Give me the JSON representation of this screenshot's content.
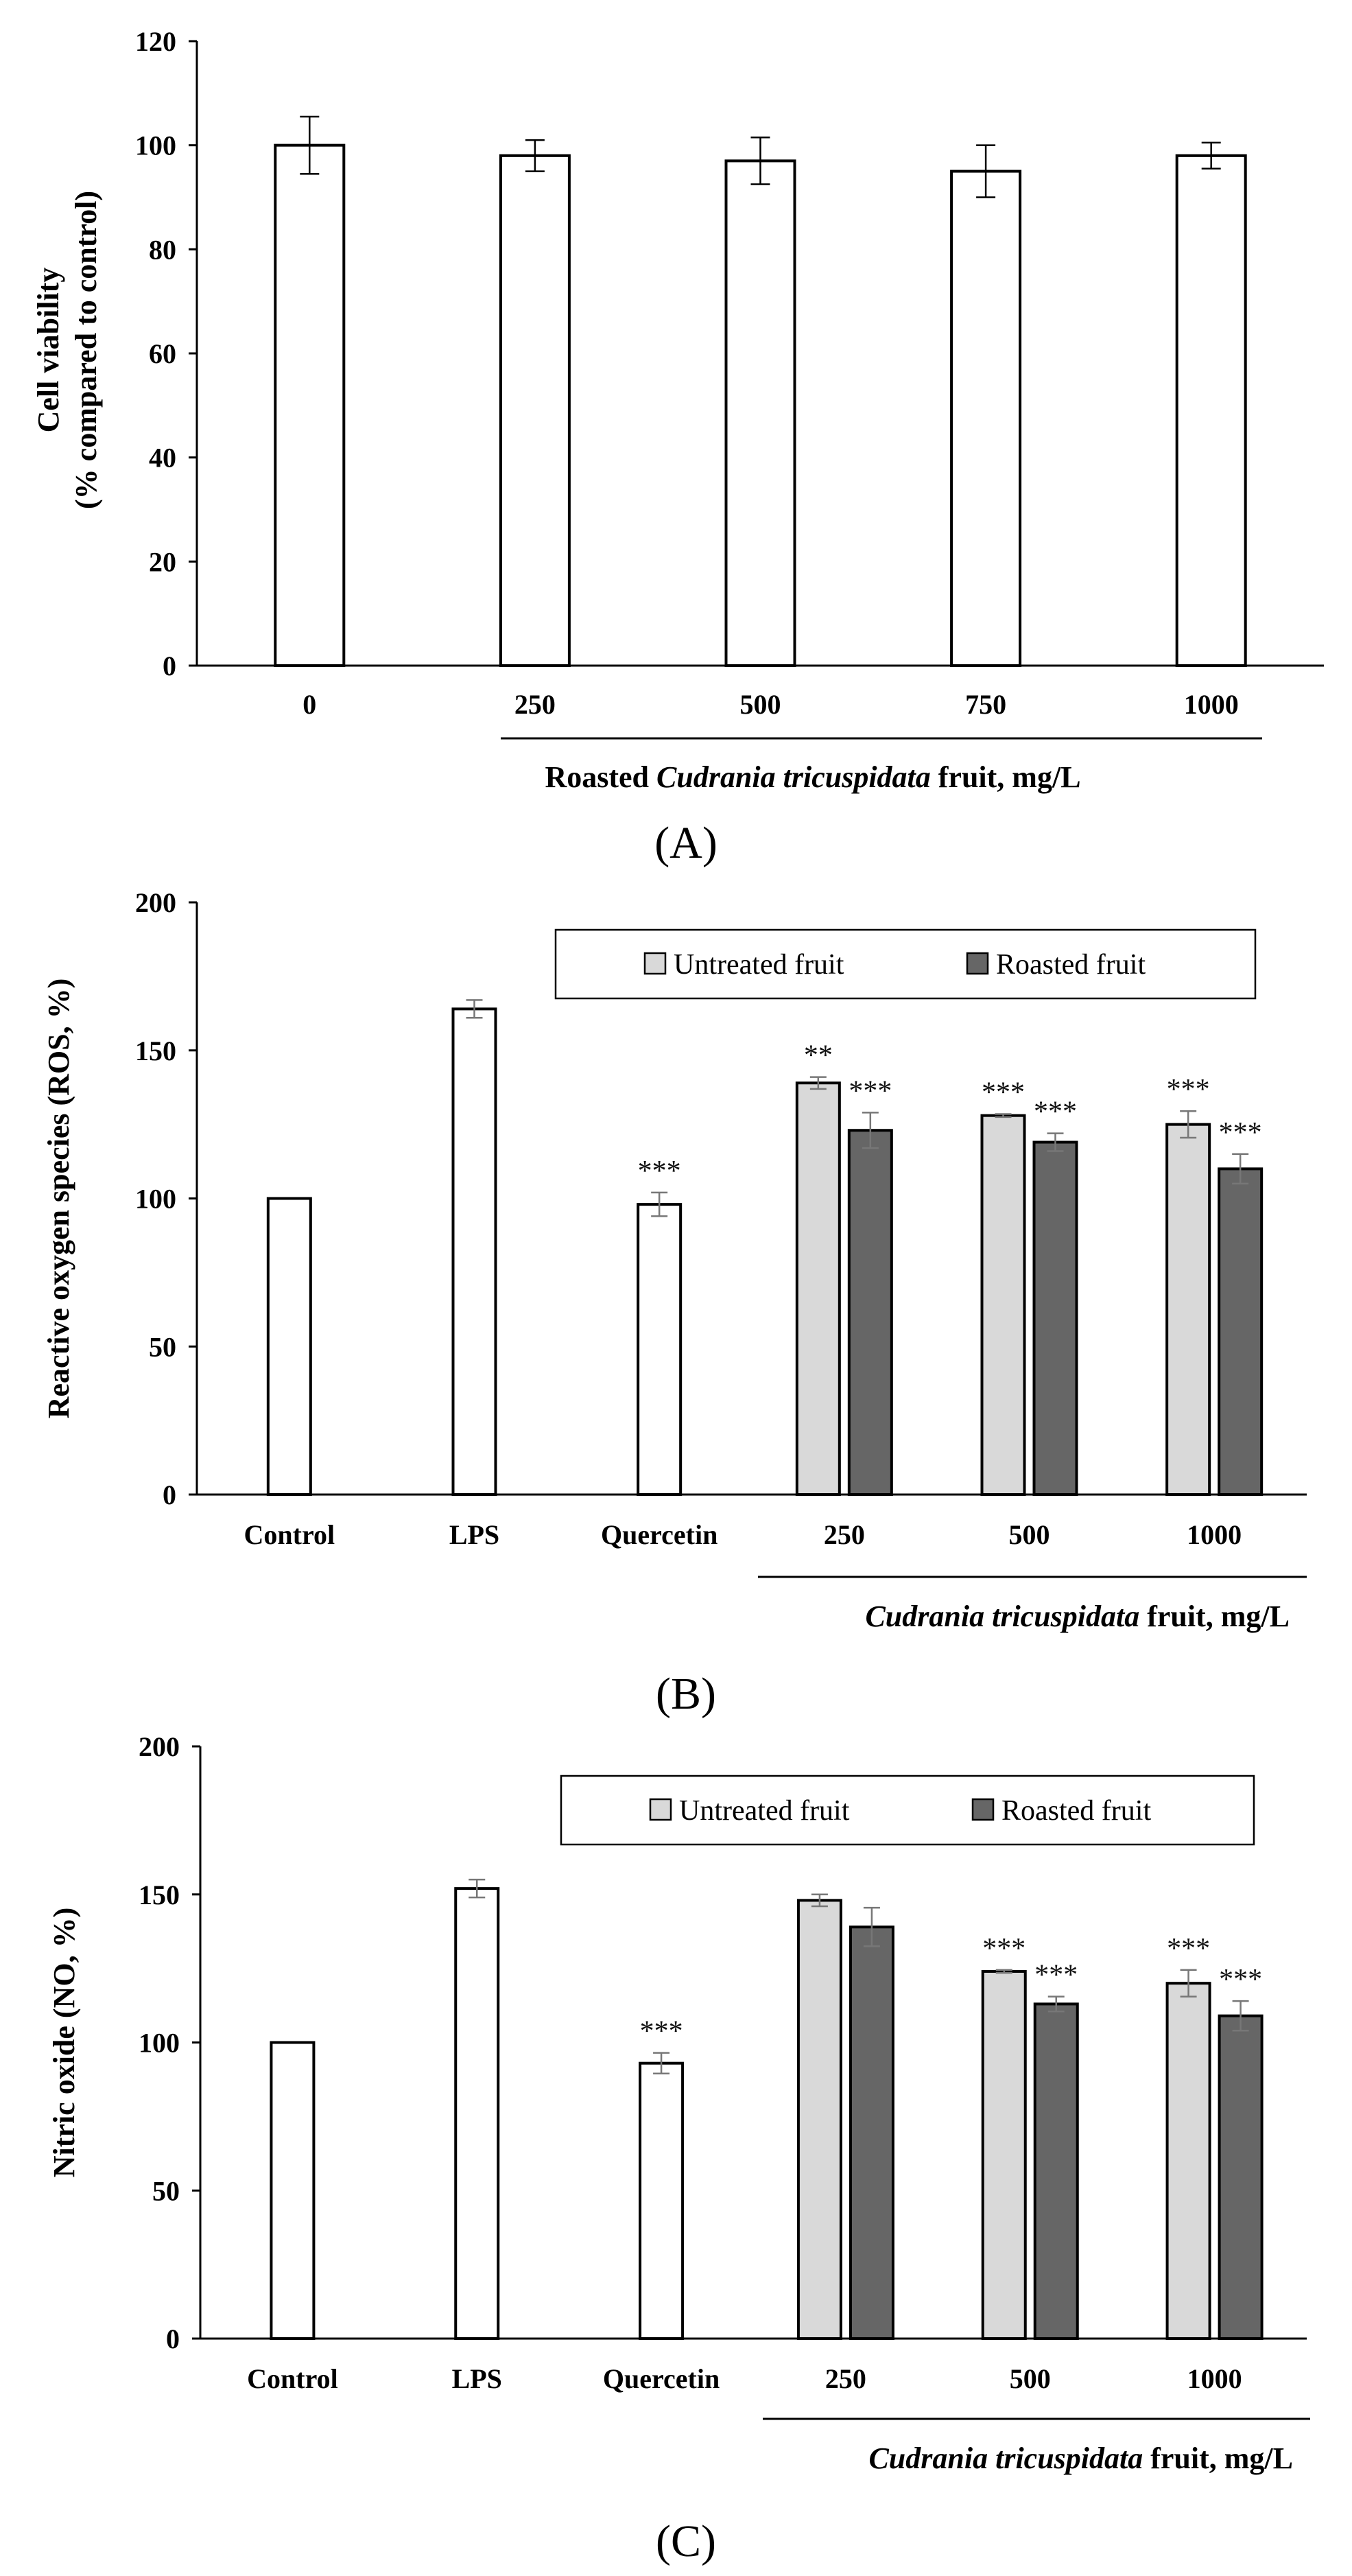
{
  "chart_data": [
    {
      "type": "bar",
      "panel_label": "(A)",
      "ylabel_line1": "Cell viability",
      "ylabel_line2": "(% compared to control)",
      "xlabel_pre": "Roasted ",
      "xlabel_italic": "Cudrania tricuspidata",
      "xlabel_post": " fruit, mg/L",
      "ylim": [
        0,
        120
      ],
      "yticks": [
        0,
        20,
        40,
        60,
        80,
        100,
        120
      ],
      "categories": [
        "0",
        "250",
        "500",
        "750",
        "1000"
      ],
      "series": [
        {
          "values": [
            100,
            98,
            97,
            95,
            98
          ],
          "errors": [
            5.5,
            3,
            4.5,
            5,
            2.5
          ],
          "color": "#ffffff"
        }
      ],
      "grid": false
    },
    {
      "type": "bar",
      "panel_label": "(B)",
      "ylabel": "Reactive oxygen species (ROS, %)",
      "xlabel_italic": "Cudrania tricuspidata",
      "xlabel_post": " fruit, mg/L",
      "ylim": [
        0,
        200
      ],
      "yticks": [
        0,
        50,
        100,
        150,
        200
      ],
      "legend_position": "top-right",
      "controls": [
        {
          "label": "Control",
          "value": 100,
          "error": 0,
          "sig": ""
        },
        {
          "label": "LPS",
          "value": 164,
          "error": 3,
          "sig": ""
        },
        {
          "label": "Quercetin",
          "value": 98,
          "error": 4,
          "sig": "***"
        }
      ],
      "categories": [
        "250",
        "500",
        "1000"
      ],
      "series": [
        {
          "name": "Untreated fruit",
          "color": "#d9d9d9",
          "values": [
            139,
            128,
            125
          ],
          "errors": [
            2,
            0.5,
            4.5
          ],
          "sig": [
            "**",
            "***",
            "***"
          ]
        },
        {
          "name": "Roasted fruit",
          "color": "#666666",
          "values": [
            123,
            119,
            110
          ],
          "errors": [
            6,
            3,
            5
          ],
          "sig": [
            "***",
            "***",
            "***"
          ]
        }
      ],
      "grid": false
    },
    {
      "type": "bar",
      "panel_label": "(C)",
      "ylabel": "Nitric oxide (NO, %)",
      "xlabel_italic": "Cudrania tricuspidata",
      "xlabel_post": " fruit, mg/L",
      "ylim": [
        0,
        200
      ],
      "yticks": [
        0,
        50,
        100,
        150,
        200
      ],
      "legend_position": "top-right",
      "controls": [
        {
          "label": "Control",
          "value": 100,
          "error": 0,
          "sig": ""
        },
        {
          "label": "LPS",
          "value": 152,
          "error": 3,
          "sig": ""
        },
        {
          "label": "Quercetin",
          "value": 93,
          "error": 3.5,
          "sig": "***"
        }
      ],
      "categories": [
        "250",
        "500",
        "1000"
      ],
      "series": [
        {
          "name": "Untreated fruit",
          "color": "#d9d9d9",
          "values": [
            148,
            124,
            120
          ],
          "errors": [
            2,
            0.5,
            4.5
          ],
          "sig": [
            "",
            "***",
            "***"
          ]
        },
        {
          "name": "Roasted fruit",
          "color": "#666666",
          "values": [
            139,
            113,
            109
          ],
          "errors": [
            6.5,
            2.5,
            5
          ],
          "sig": [
            "",
            "***",
            "***"
          ]
        }
      ],
      "grid": false
    }
  ]
}
